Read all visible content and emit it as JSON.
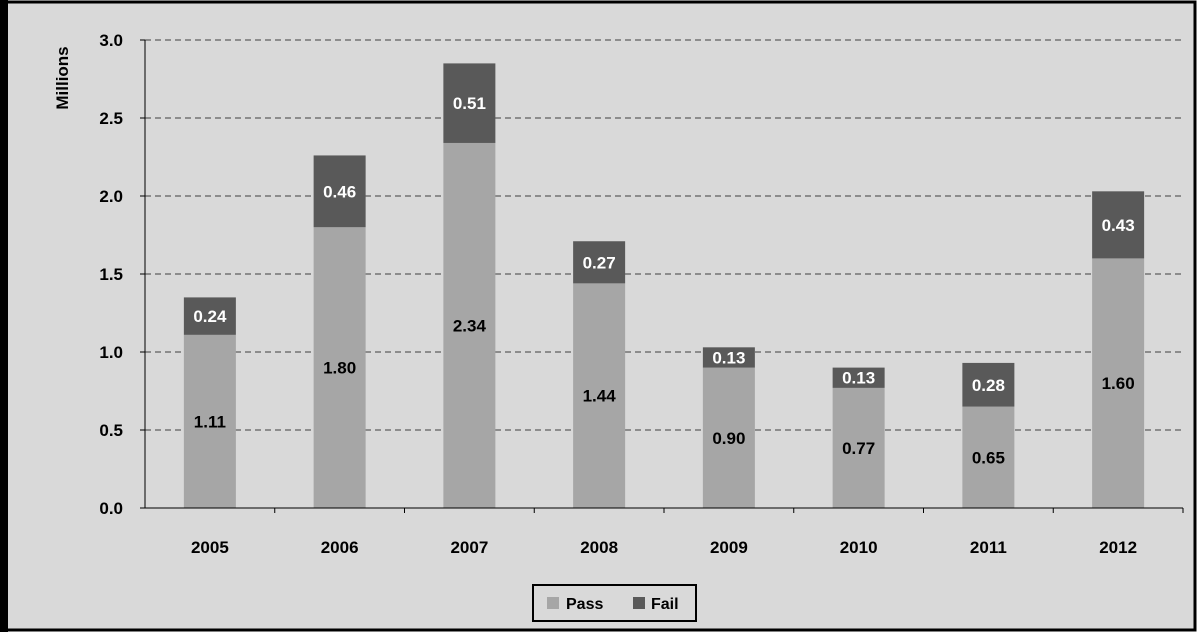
{
  "chart_data": {
    "type": "bar",
    "stacked": true,
    "categories": [
      "2005",
      "2006",
      "2007",
      "2008",
      "2009",
      "2010",
      "2011",
      "2012"
    ],
    "series": [
      {
        "name": "Pass",
        "values": [
          1.11,
          1.8,
          2.34,
          1.44,
          0.9,
          0.77,
          0.65,
          1.6
        ]
      },
      {
        "name": "Fail",
        "values": [
          0.24,
          0.46,
          0.51,
          0.27,
          0.13,
          0.13,
          0.28,
          0.43
        ]
      }
    ],
    "value_labels": {
      "Pass": [
        "1.11",
        "1.80",
        "2.34",
        "1.44",
        "0.90",
        "0.77",
        "0.65",
        "1.60"
      ],
      "Fail": [
        "0.24",
        "0.46",
        "0.51",
        "0.27",
        "0.13",
        "0.13",
        "0.28",
        "0.43"
      ]
    },
    "ylabel": "Millions",
    "xlabel": "",
    "ylim": [
      0,
      3.0
    ],
    "yticks": [
      "0.0",
      "0.5",
      "1.0",
      "1.5",
      "2.0",
      "2.5",
      "3.0"
    ],
    "grid": true,
    "legend_position": "bottom-center",
    "colors": {
      "Pass": "#a6a6a6",
      "Fail": "#595959",
      "background": "#d9d9d9",
      "grid": "#8c8c8c"
    }
  }
}
